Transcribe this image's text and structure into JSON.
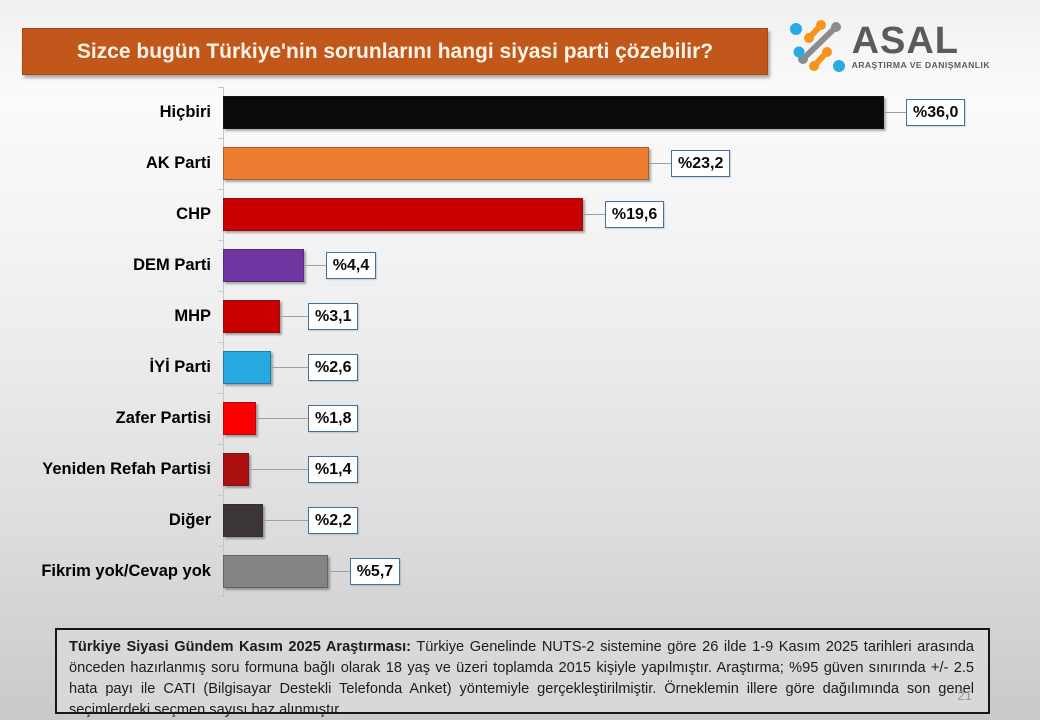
{
  "title": "Sizce bugün Türkiye'nin sorunlarını hangi siyasi parti çözebilir?",
  "logo": {
    "name": "ASAL",
    "subtitle": "ARAŞTIRMA VE DANIŞMANLIK"
  },
  "colors": {
    "title_bar": "#c2571b",
    "value_box_border": "#41719c",
    "logo_orange": "#f7941d",
    "logo_blue": "#29abe2",
    "logo_gray": "#8a8c8e"
  },
  "chart_data": {
    "type": "bar",
    "orientation": "horizontal",
    "title": "Sizce bugün Türkiye'nin sorunlarını hangi siyasi parti çözebilir?",
    "unit": "%",
    "xlim": [
      0,
      36
    ],
    "grid": false,
    "legend": false,
    "categories": [
      "Hiçbiri",
      "AK Parti",
      "CHP",
      "DEM Parti",
      "MHP",
      "İYİ Parti",
      "Zafer Partisi",
      "Yeniden Refah Partisi",
      "Diğer",
      "Fikrim yok/Cevap yok"
    ],
    "values": [
      36.0,
      23.2,
      19.6,
      4.4,
      3.1,
      2.6,
      1.8,
      1.4,
      2.2,
      5.7
    ],
    "labels": [
      "%36,0",
      "%23,2",
      "%19,6",
      "%4,4",
      "%3,1",
      "%2,6",
      "%1,8",
      "%1,4",
      "%2,2",
      "%5,7"
    ],
    "bar_colors": [
      "#0b0b0b",
      "#ed7d31",
      "#c80000",
      "#6f35a0",
      "#c80000",
      "#25a9e0",
      "#fa0000",
      "#aa1010",
      "#3b3535",
      "#848484"
    ]
  },
  "footnote": {
    "bold": "Türkiye Siyasi Gündem Kasım 2025 Araştırması:",
    "text": " Türkiye Genelinde NUTS-2 sistemine göre 26 ilde 1-9 Kasım 2025 tarihleri arasında önceden hazırlanmış soru formuna bağlı olarak 18 yaş ve üzeri toplamda 2015 kişiyle yapılmıştır. Araştırma; %95 güven sınırında +/- 2.5 hata payı ile CATI (Bilgisayar Destekli Telefonda Anket) yöntemiyle gerçekleştirilmiştir. Örneklemin illere göre dağılımında son genel seçimlerdeki seçmen sayısı baz alınmıştır.",
    "page_number": "21"
  }
}
